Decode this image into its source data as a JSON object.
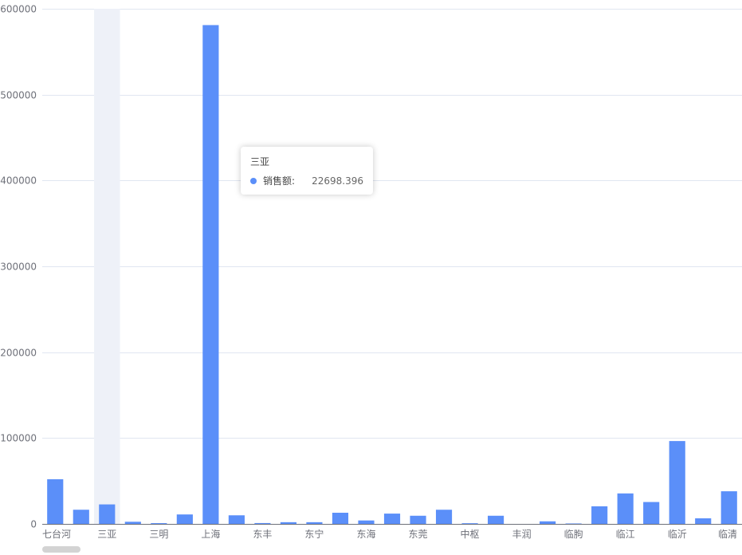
{
  "chart_data": {
    "type": "bar",
    "title": "",
    "xlabel": "",
    "ylabel": "",
    "ylim": [
      0,
      600000
    ],
    "yticks": [
      0,
      100000,
      200000,
      300000,
      400000,
      500000,
      600000
    ],
    "grid": true,
    "categories": [
      "七台河",
      "",
      "三亚",
      "",
      "三明",
      "",
      "上海",
      "",
      "东丰",
      "",
      "东宁",
      "",
      "东海",
      "",
      "东莞",
      "",
      "中枢",
      "",
      "丰润",
      "",
      "临朐",
      "",
      "临江",
      "",
      "临沂",
      "",
      "临清"
    ],
    "series": [
      {
        "name": "销售额",
        "color": "#5b8ff9",
        "values": [
          52000,
          16500,
          22698.396,
          2500,
          900,
          11000,
          581000,
          10000,
          1000,
          2000,
          2000,
          13000,
          4000,
          12000,
          9500,
          16500,
          800,
          9500,
          0,
          3000,
          500,
          20500,
          35500,
          25500,
          96500,
          6500,
          38000
        ]
      }
    ],
    "highlight_index": 2
  },
  "tooltip": {
    "title": "三亚",
    "series_label": "销售额:",
    "value": "22698.396",
    "color": "#5b8ff9"
  },
  "colors": {
    "bar": "#5b8ff9",
    "highlight_band": "#eef1f8",
    "grid": "#e0e6f1",
    "axis_text": "#6e7079"
  },
  "scrollbar": {
    "visible": true
  }
}
